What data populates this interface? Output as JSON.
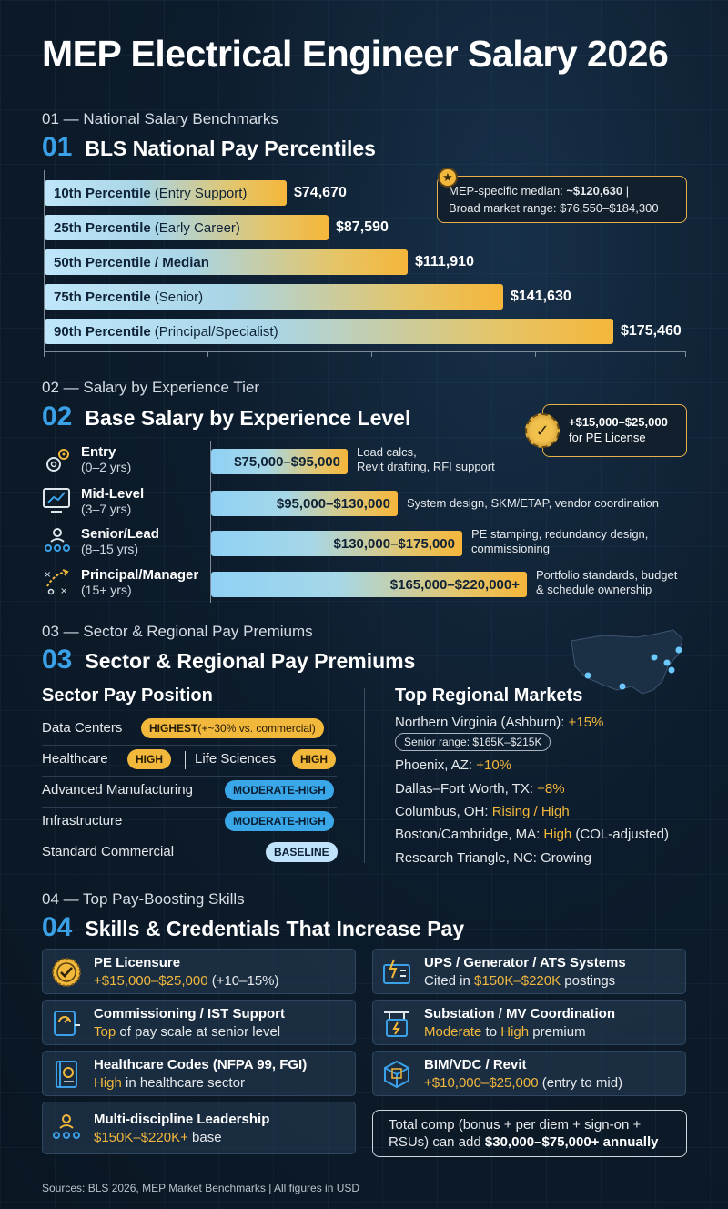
{
  "title": "MEP Electrical Engineer Salary 2026",
  "section1": {
    "small": "01 — National Salary Benchmarks",
    "num": "01",
    "title": "BLS National Pay Percentiles",
    "median_note": {
      "prefix": "MEP-specific median: ",
      "value": "~$120,630",
      "suffix": " |",
      "line2": "Broad market range: $76,550–$184,300"
    }
  },
  "chart_data": {
    "type": "bar",
    "orientation": "horizontal",
    "categories": [
      "10th Percentile",
      "25th Percentile",
      "50th Percentile / Median",
      "75th Percentile",
      "90th Percentile"
    ],
    "category_notes": [
      "(Entry Support)",
      "(Early Career)",
      "",
      "(Senior)",
      "(Principal/Specialist)"
    ],
    "values": [
      74670,
      87590,
      111910,
      141630,
      175460
    ],
    "value_labels": [
      "$74,670",
      "$87,590",
      "$111,910",
      "$141,630",
      "$175,460"
    ]
  },
  "section2": {
    "small": "02 — Salary by Experience Tier",
    "num": "02",
    "title": "Base Salary by Experience Level",
    "pe_note": {
      "line1": "+$15,000–$25,000",
      "line2": "for PE License"
    },
    "tiers": [
      {
        "name": "Entry",
        "years": "(0–2 yrs)",
        "range": "$75,000–$95,000",
        "desc1": "Load calcs,",
        "desc2": "Revit drafting, RFI support",
        "icon": "gears-icon",
        "max": 95000
      },
      {
        "name": "Mid-Level",
        "years": "(3–7 yrs)",
        "range": "$95,000–$130,000",
        "desc1": "System design, SKM/ETAP, vendor coordination",
        "desc2": "",
        "icon": "monitor-chart-icon",
        "max": 130000
      },
      {
        "name": "Senior/Lead",
        "years": "(8–15 yrs)",
        "range": "$130,000–$175,000",
        "desc1": "PE stamping, redundancy design,",
        "desc2": "commissioning",
        "icon": "team-lead-icon",
        "max": 175000
      },
      {
        "name": "Principal/Manager",
        "years": "(15+ yrs)",
        "range": "$165,000–$220,000+",
        "desc1": "Portfolio standards, budget",
        "desc2": "& schedule ownership",
        "icon": "strategy-icon",
        "max": 220000
      }
    ]
  },
  "section3": {
    "small": "03 — Sector & Regional Pay Premiums",
    "num": "03",
    "title": "Sector & Regional Pay Premiums",
    "sector_title": "Sector Pay Position",
    "sectors": {
      "datacenters": {
        "name": "Data Centers",
        "pill": "HIGHEST",
        "pill_extra": " (+~30% vs. commercial)"
      },
      "healthcare": {
        "name": "Healthcare",
        "pill": "HIGH"
      },
      "lifesciences": {
        "name": "Life Sciences",
        "pill": "HIGH"
      },
      "advmfg": {
        "name": "Advanced Manufacturing",
        "pill": "MODERATE-HIGH"
      },
      "infra": {
        "name": "Infrastructure",
        "pill": "MODERATE-HIGH"
      },
      "commercial": {
        "name": "Standard Commercial",
        "pill": "BASELINE"
      }
    },
    "region_title": "Top Regional Markets",
    "regions": [
      {
        "name": "Northern Virginia (Ashburn): ",
        "value": "+15%",
        "extra": ""
      },
      {
        "name": "Phoenix, AZ: ",
        "value": "+10%",
        "extra": ""
      },
      {
        "name": "Dallas–Fort Worth, TX: ",
        "value": "+8%",
        "extra": ""
      },
      {
        "name": "Columbus, OH: ",
        "value": "Rising / High",
        "extra": ""
      },
      {
        "name": "Boston/Cambridge, MA: ",
        "value": "High",
        "extra": " (COL-adjusted)"
      },
      {
        "name": "Research Triangle, NC: Growing",
        "value": "",
        "extra": ""
      }
    ],
    "senior_range": "Senior range: $165K–$215K"
  },
  "section4": {
    "small": "04 — Top Pay-Boosting Skills",
    "num": "04",
    "title": "Skills & Credentials That Increase Pay",
    "skills": [
      {
        "title": "PE Licensure",
        "hl": "+$15,000–$25,000",
        "rest": " (+10–15%)",
        "icon": "certificate-seal-icon"
      },
      {
        "title": "UPS / Generator / ATS Systems",
        "pre": "Cited in ",
        "hl": "$150K–$220K",
        "rest": " postings",
        "icon": "generator-icon"
      },
      {
        "title": "Commissioning / IST Support",
        "hl": "Top",
        "rest": " of pay scale at senior level",
        "icon": "meter-icon"
      },
      {
        "title": "Substation / MV Coordination",
        "hl": "Moderate",
        "mid": " to ",
        "hl2": "High",
        "rest": " premium",
        "icon": "substation-icon"
      },
      {
        "title": "Healthcare Codes (NFPA 99, FGI)",
        "hl": "High",
        "rest": " in healthcare sector",
        "icon": "codebook-icon"
      },
      {
        "title": "BIM/VDC / Revit",
        "hl": "+$10,000–$25,000",
        "rest": " (entry to mid)",
        "icon": "cube-icon"
      },
      {
        "title": "Multi-discipline Leadership",
        "hl": "$150K–$220K+",
        "rest": " base",
        "icon": "leadership-icon"
      }
    ],
    "total": {
      "line1": "Total comp (bonus + per diem + sign-on +",
      "line2a": "RSUs) can add ",
      "line2b": "$30,000–$75,000+ annually"
    }
  },
  "sources": "Sources: BLS 2026, MEP Market Benchmarks | All figures in USD",
  "colors": {
    "accent_blue": "#3aa0e8",
    "accent_gold": "#f1b83c",
    "background": "#0d1c2c"
  }
}
